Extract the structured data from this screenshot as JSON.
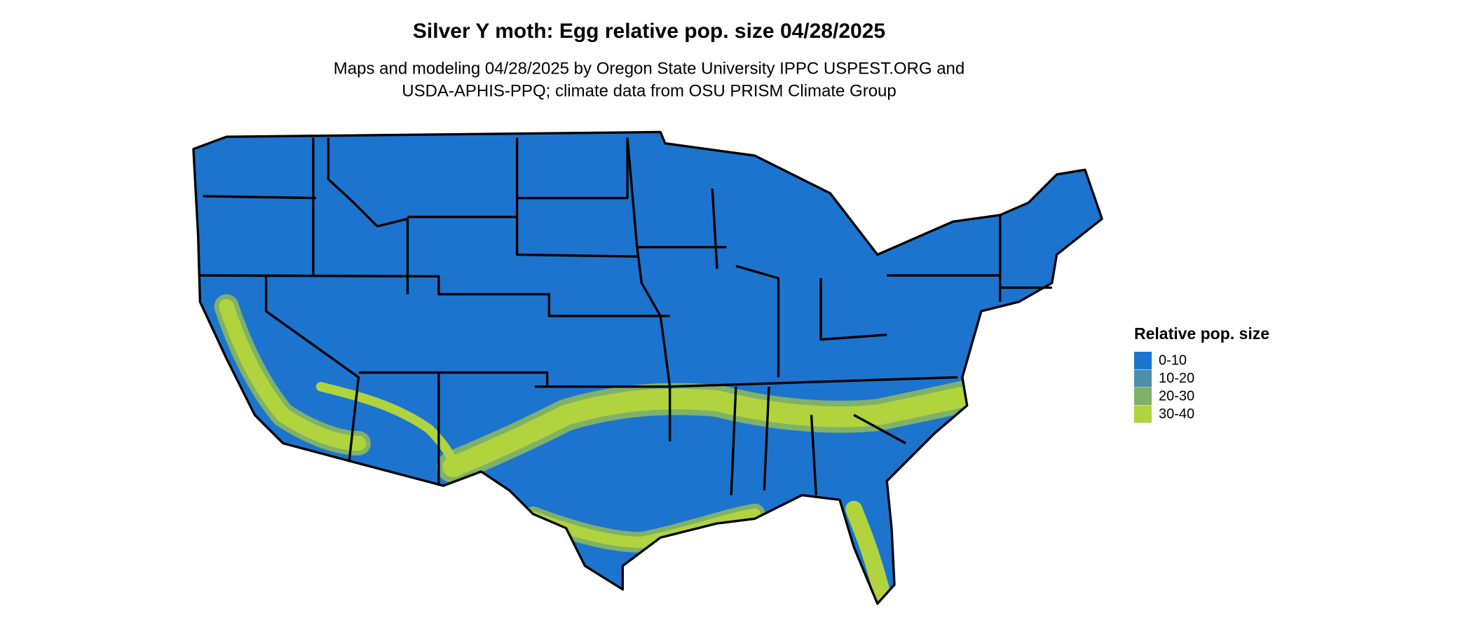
{
  "title": "Silver Y moth: Egg relative pop. size 04/28/2025",
  "subtitle": [
    "Maps and modeling 04/28/2025 by Oregon State University IPPC USPEST.ORG and",
    "USDA-APHIS-PPQ; climate data from OSU PRISM Climate Group"
  ],
  "legend": {
    "title": "Relative pop. size",
    "items": [
      {
        "label": "0-10",
        "color": "#1c74cf"
      },
      {
        "label": "10-20",
        "color": "#4d8fa6"
      },
      {
        "label": "20-30",
        "color": "#7fb168"
      },
      {
        "label": "30-40",
        "color": "#b1d33d"
      }
    ]
  }
}
